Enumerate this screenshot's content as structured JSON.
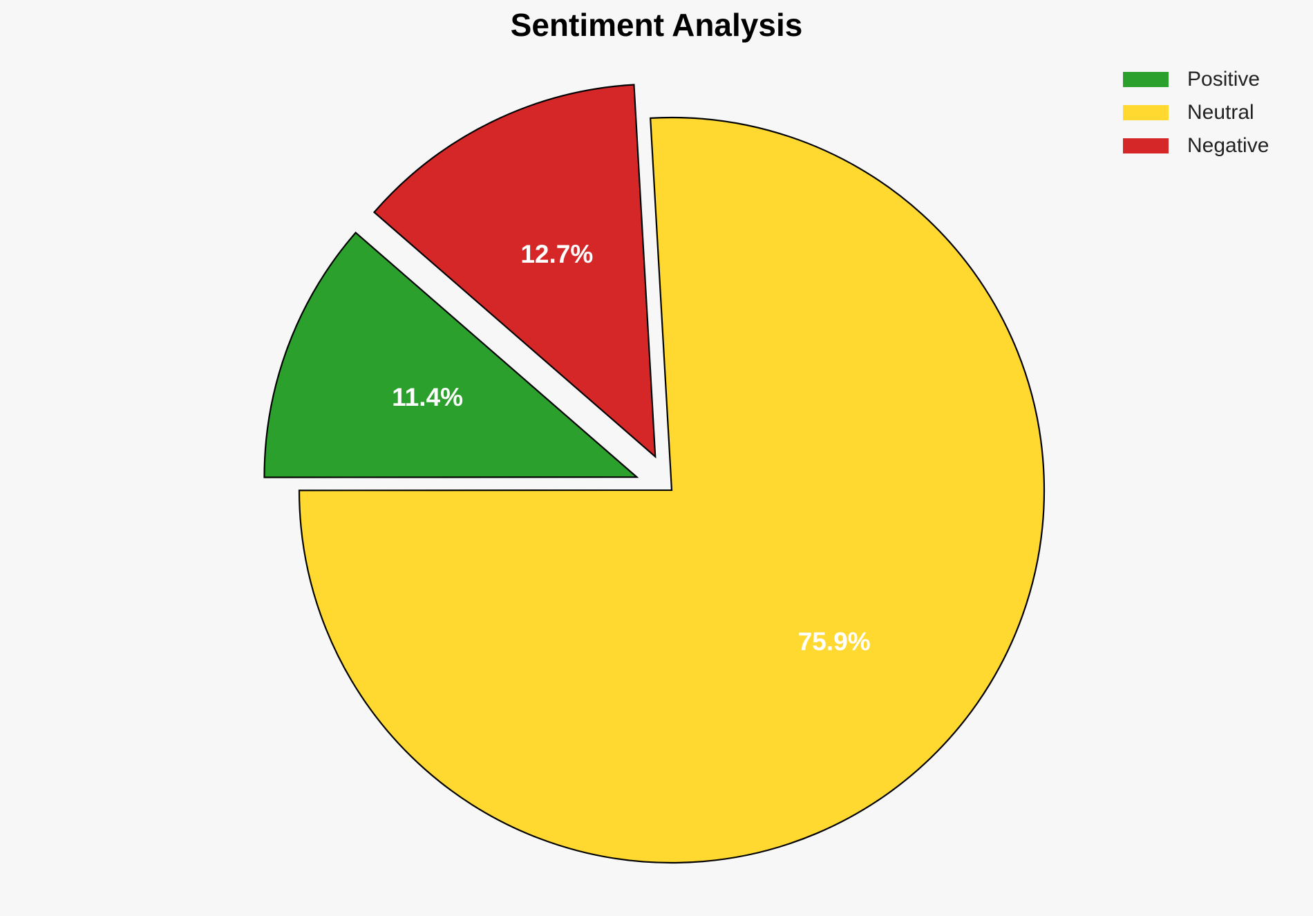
{
  "chart_data": {
    "type": "pie",
    "title": "Sentiment Analysis",
    "categories": [
      "Positive",
      "Neutral",
      "Negative"
    ],
    "values": [
      11.4,
      75.9,
      12.7
    ],
    "value_labels": [
      "11.4%",
      "75.9%",
      "12.7%"
    ],
    "colors": [
      "#2ca02c",
      "#ffd92f",
      "#d62728"
    ],
    "explode": [
      0.1,
      0,
      0.1
    ],
    "startangle": 139,
    "counterclock": true,
    "legend": "upper right"
  }
}
